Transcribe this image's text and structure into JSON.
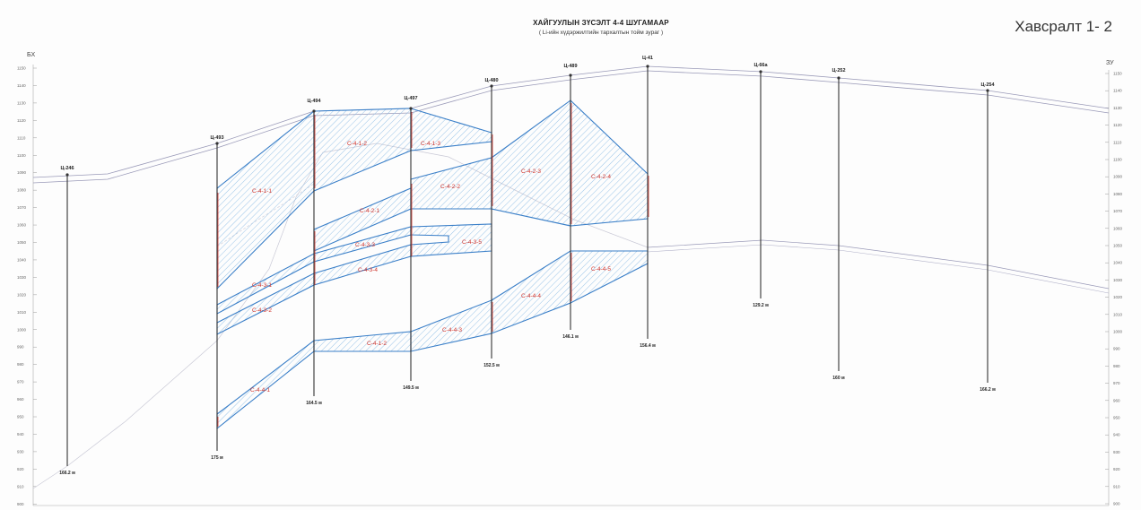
{
  "header": {
    "title": "ХАЙГУУЛЫН ЗҮСЭЛТ 4-4 ШУГАМААР",
    "subtitle": "( Li-ийн хүдэржилтийн тархалтын тойм зураг )",
    "appendix": "Хавсралт 1- 2"
  },
  "sides": {
    "left": "БХ",
    "right": "ЗУ"
  },
  "elevation_ticks": [
    "1150",
    "1140",
    "1130",
    "1120",
    "1110",
    "1100",
    "1090",
    "1080",
    "1070",
    "1060",
    "1050",
    "1040",
    "1030",
    "1020",
    "1010",
    "1000",
    "990",
    "980",
    "970",
    "960",
    "950",
    "940",
    "930",
    "920",
    "910",
    "900"
  ],
  "holes": [
    {
      "name": "Ц-246",
      "depth": "166.2 м"
    },
    {
      "name": "Ц-493",
      "depth": "175 м"
    },
    {
      "name": "Ц-494",
      "depth": "164.5 м"
    },
    {
      "name": "Ц-497",
      "depth": "149.5 м"
    },
    {
      "name": "Ц-480",
      "depth": "152.5 м"
    },
    {
      "name": "Ц-489",
      "depth": "146.1 м"
    },
    {
      "name": "Ц-41",
      "depth": "156.4 м"
    },
    {
      "name": "Ц-66а",
      "depth": "129.2 м"
    },
    {
      "name": "Ц-252",
      "depth": "160 м"
    },
    {
      "name": "Ц-254",
      "depth": "166.2 м"
    }
  ],
  "zones": [
    "С-4-1-1",
    "С-4-1-2",
    "С-4-1-3",
    "С-4-2-1",
    "С-4-2-2",
    "С-4-2-3",
    "С-4-2-4",
    "С-4-3-1",
    "С-4-3-2",
    "С-4-3-3",
    "С-4-3-4",
    "С-4-3-5",
    "С-4-4-1",
    "С-4-1-2",
    "С-4-4-3",
    "С-4-4-4",
    "С-4-4-5"
  ],
  "colors": {
    "ore_outline": "#3a7fc8",
    "hatch": "#7fb3e0",
    "zone_text": "#d0342c",
    "surface": "#8f8fb0",
    "grid": "#cfcfcf"
  }
}
